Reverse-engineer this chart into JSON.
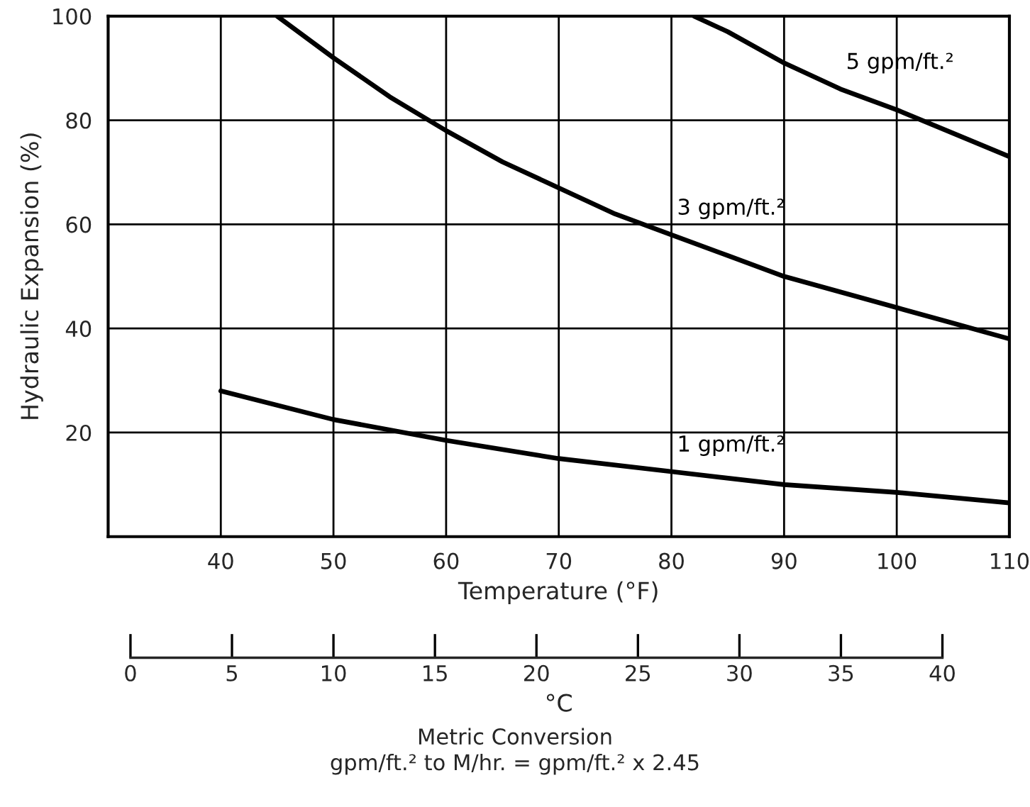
{
  "chart_data": {
    "type": "line",
    "xlabel": "Temperature (°F)",
    "ylabel": "Hydraulic Expansion (%)",
    "x2label": "°C",
    "xlim": [
      30,
      110
    ],
    "xticks": [
      40,
      50,
      60,
      70,
      80,
      90,
      100,
      110
    ],
    "ylim": [
      0,
      100
    ],
    "yticks": [
      20,
      40,
      60,
      80,
      100
    ],
    "x2lim": [
      -1.1,
      43.3
    ],
    "x2ticks": [
      0,
      5,
      10,
      15,
      20,
      25,
      30,
      35,
      40
    ],
    "grid": true,
    "legend": false,
    "marker": "none",
    "line_style": "solid",
    "series": [
      {
        "name": "1 gpm/ft.²",
        "color": "#000000",
        "x": [
          40,
          50,
          60,
          70,
          80,
          90,
          100,
          110
        ],
        "values": [
          28,
          22.5,
          18.5,
          15,
          12.5,
          10,
          8.5,
          6.5
        ]
      },
      {
        "name": "3 gpm/ft.²",
        "color": "#000000",
        "x": [
          45,
          50,
          55,
          60,
          65,
          70,
          75,
          80,
          85,
          90,
          95,
          100,
          105,
          110
        ],
        "values": [
          100,
          92,
          84.5,
          78,
          72,
          67,
          62,
          58,
          54,
          50,
          47,
          44,
          41,
          38
        ]
      },
      {
        "name": "5 gpm/ft.²",
        "color": "#000000",
        "x": [
          82,
          85,
          90,
          95,
          100,
          105,
          110
        ],
        "values": [
          100,
          97,
          91,
          86,
          82,
          77.5,
          73
        ]
      }
    ],
    "annotations": [
      "Metric Conversion",
      "gpm/ft.² to M/hr. = gpm/ft.² x 2.45"
    ]
  }
}
